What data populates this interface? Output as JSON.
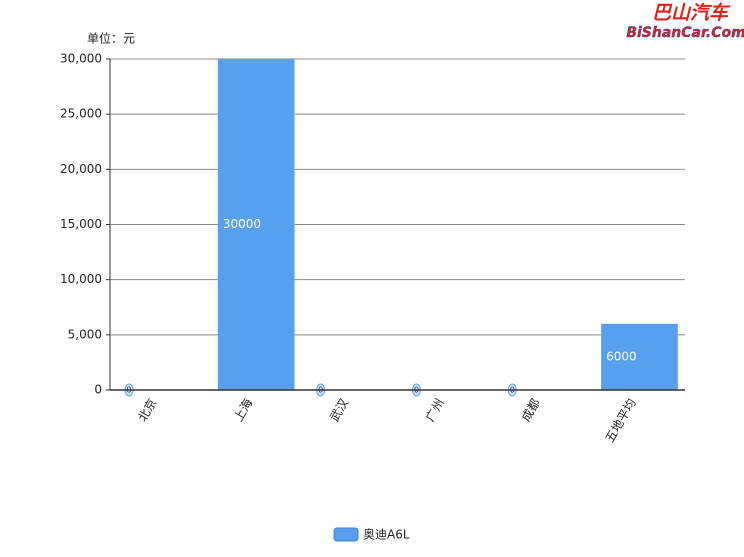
{
  "chart_data": {
    "type": "bar",
    "unit_label": "单位：元",
    "watermark": {
      "title": "巴山汽车",
      "site": "BiShanCar.Com"
    },
    "categories": [
      "北京",
      "上海",
      "武汉",
      "广州",
      "成都",
      "五地平均"
    ],
    "series": [
      {
        "name": "奥迪A6L",
        "color": "#589fee",
        "values": [
          0,
          30000,
          0,
          0,
          0,
          6000
        ]
      }
    ],
    "ylim": [
      0,
      30000
    ],
    "yticks": [
      0,
      {
        "value": 5000,
        "label": "5,000"
      },
      {
        "value": 10000,
        "label": "10,000"
      },
      {
        "value": 15000,
        "label": "15,000"
      },
      {
        "value": 20000,
        "label": "20,000"
      },
      {
        "value": 25000,
        "label": "25,000"
      },
      {
        "value": 30000,
        "label": "30,000"
      }
    ],
    "grid": true,
    "legend": "bottom"
  }
}
